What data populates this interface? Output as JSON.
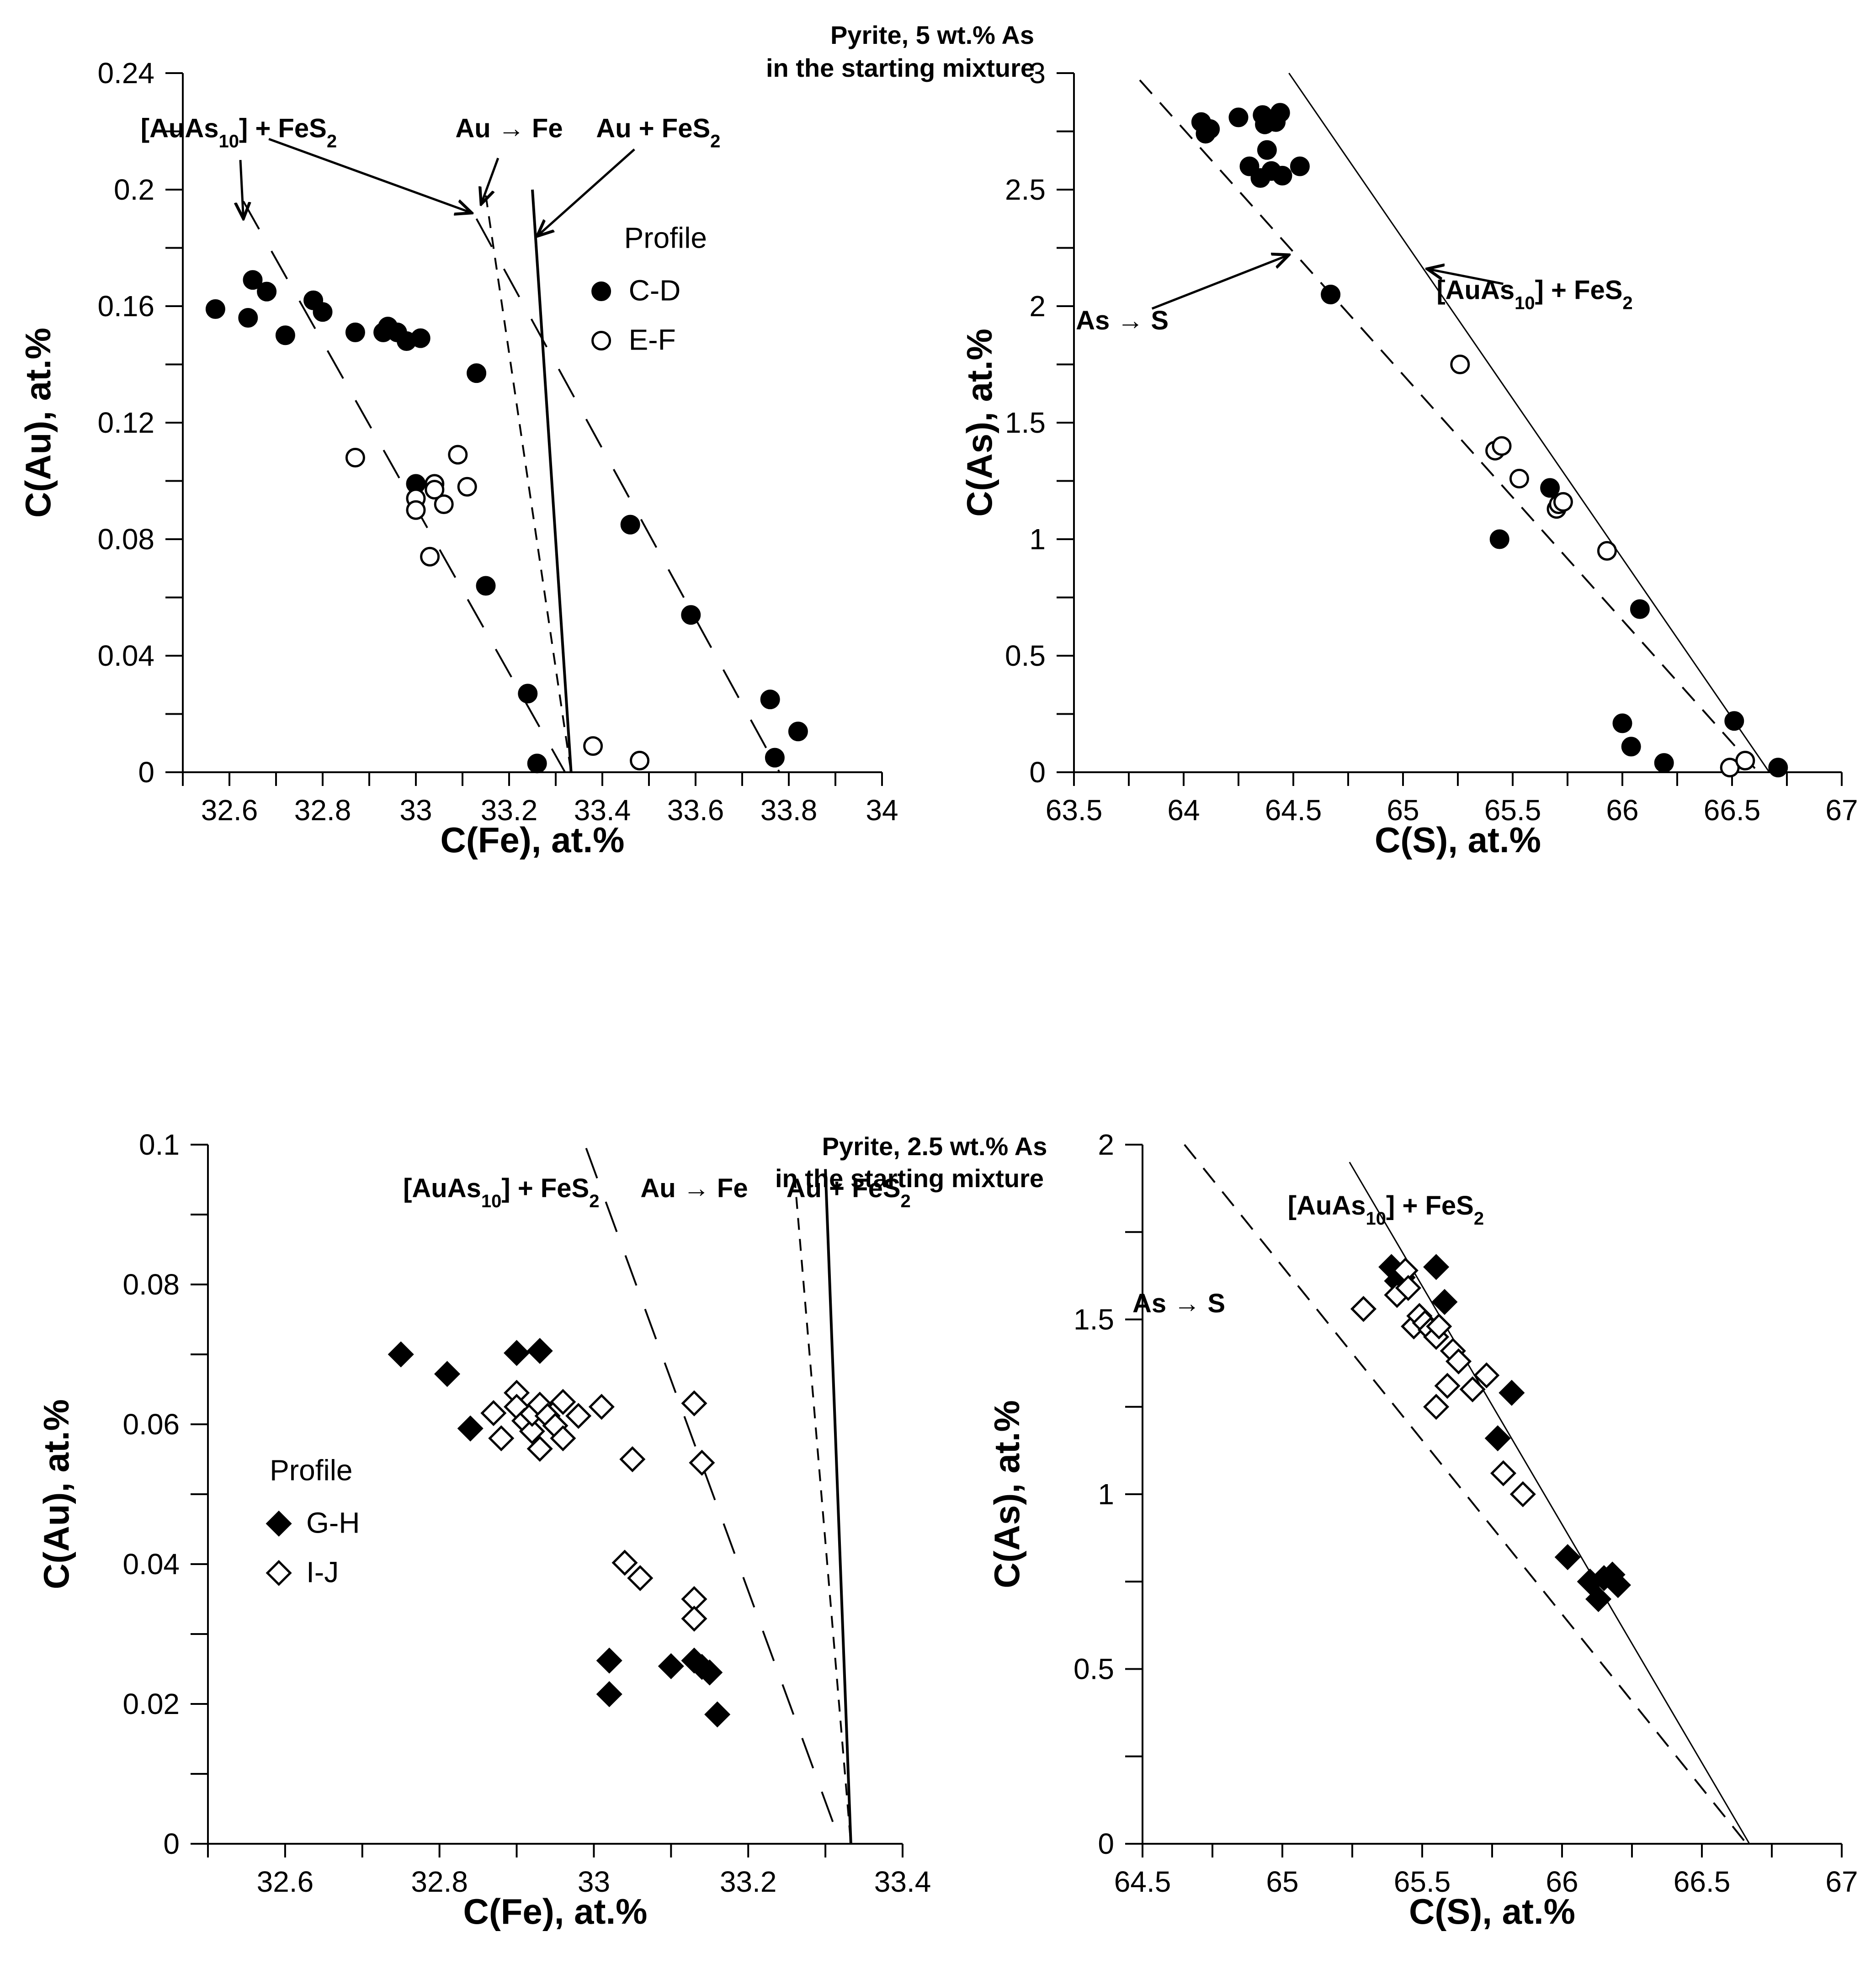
{
  "chart_data": [
    {
      "id": "p1",
      "type": "scatter",
      "title_lines": [
        "Pyrite, 5 wt.% As",
        "in the starting mixture"
      ],
      "xlabel": "C(Fe), at.%",
      "ylabel": "C(Au), at.%",
      "xlim": [
        32.5,
        34.0
      ],
      "ylim": [
        0,
        0.24
      ],
      "xticks": [
        32.6,
        32.8,
        33,
        33.2,
        33.4,
        33.6,
        33.8,
        34
      ],
      "xtick_labels": [
        "32.6",
        "32.8",
        "33",
        "33.2",
        "33.4",
        "33.6",
        "33.8",
        "34"
      ],
      "yticks": [
        0,
        0.04,
        0.08,
        0.12,
        0.16,
        0.2,
        0.24
      ],
      "ytick_labels": [
        "0",
        "0.04",
        "0.08",
        "0.12",
        "0.16",
        "0.2",
        "0.24"
      ],
      "legend": {
        "title": "Profile",
        "position": "top-right"
      },
      "series": [
        {
          "name": "C-D",
          "marker": "circle-filled",
          "x": [
            32.57,
            32.64,
            32.65,
            32.68,
            32.72,
            32.78,
            32.8,
            32.87,
            32.93,
            32.94,
            32.96,
            32.98,
            33.01,
            33.0,
            33.13,
            33.15,
            33.24,
            33.26,
            33.46,
            33.59,
            33.76,
            33.77,
            33.82
          ],
          "y": [
            0.159,
            0.156,
            0.169,
            0.165,
            0.15,
            0.162,
            0.158,
            0.151,
            0.151,
            0.153,
            0.151,
            0.148,
            0.149,
            0.099,
            0.137,
            0.064,
            0.027,
            0.003,
            0.085,
            0.054,
            0.025,
            0.005,
            0.014
          ]
        },
        {
          "name": "E-F",
          "marker": "circle-open",
          "x": [
            32.87,
            33.0,
            33.0,
            33.03,
            33.04,
            33.04,
            33.06,
            33.09,
            33.11,
            33.38,
            33.48
          ],
          "y": [
            0.108,
            0.094,
            0.09,
            0.074,
            0.099,
            0.097,
            0.092,
            0.109,
            0.098,
            0.009,
            0.004
          ]
        }
      ],
      "lines": [
        {
          "name": "[AuAs10] + FeS2",
          "style": "long-dash",
          "x": [
            32.63,
            33.32
          ],
          "y": [
            0.196,
            0.0
          ]
        },
        {
          "name": "[AuAs10] + FeS2",
          "style": "long-dash",
          "x": [
            33.13,
            33.78
          ],
          "y": [
            0.19,
            0.0
          ]
        },
        {
          "name": "Au → Fe",
          "style": "short-dash",
          "x": [
            33.15,
            33.333
          ],
          "y": [
            0.198,
            0.0
          ]
        },
        {
          "name": "Au + FeS2",
          "style": "solid",
          "x": [
            33.25,
            33.333
          ],
          "y": [
            0.2,
            0.0
          ]
        }
      ],
      "annotations": [
        {
          "text": "[AuAs10] + FeS2",
          "label_at": [
            32.62,
            0.218
          ],
          "arrows_to": [
            [
              32.63,
              0.19
            ],
            [
              33.12,
              0.192
            ]
          ]
        },
        {
          "text": "Au → Fe",
          "label_at": [
            33.2,
            0.218
          ],
          "arrows_to": [
            [
              33.14,
              0.195
            ]
          ]
        },
        {
          "text": "Au + FeS2",
          "label_at": [
            33.52,
            0.218
          ],
          "arrows_to": [
            [
              33.26,
              0.184
            ]
          ]
        }
      ]
    },
    {
      "id": "p2",
      "type": "scatter",
      "xlabel": "C(S), at.%",
      "ylabel": "C(As), at.%",
      "xlim": [
        63.5,
        67.0
      ],
      "ylim": [
        0,
        3
      ],
      "xticks": [
        63.5,
        64,
        64.5,
        65,
        65.5,
        66,
        66.5,
        67
      ],
      "xtick_labels": [
        "63.5",
        "64",
        "64.5",
        "65",
        "65.5",
        "66",
        "66.5",
        "67"
      ],
      "yticks": [
        0,
        0.5,
        1,
        1.5,
        2,
        2.5,
        3
      ],
      "ytick_labels": [
        "0",
        "0.5",
        "1",
        "1.5",
        "2",
        "2.5",
        "3"
      ],
      "series": [
        {
          "name": "C-D",
          "marker": "circle-filled",
          "x": [
            64.08,
            64.1,
            64.12,
            64.25,
            64.3,
            64.35,
            64.36,
            64.37,
            64.38,
            64.4,
            64.42,
            64.44,
            64.45,
            64.53,
            64.67,
            65.44,
            65.67,
            66.08,
            66.0,
            66.04,
            66.19,
            66.51,
            66.71
          ],
          "y": [
            2.79,
            2.74,
            2.76,
            2.81,
            2.6,
            2.55,
            2.82,
            2.78,
            2.67,
            2.58,
            2.79,
            2.83,
            2.56,
            2.6,
            2.05,
            1.0,
            1.22,
            0.7,
            0.21,
            0.11,
            0.04,
            0.22,
            0.02
          ]
        },
        {
          "name": "E-F",
          "marker": "circle-open",
          "x": [
            65.26,
            65.42,
            65.45,
            65.53,
            65.7,
            65.71,
            65.73,
            65.93,
            66.49,
            66.56
          ],
          "y": [
            1.75,
            1.38,
            1.4,
            1.26,
            1.13,
            1.15,
            1.16,
            0.95,
            0.02,
            0.05
          ]
        }
      ],
      "lines": [
        {
          "name": "As → S",
          "style": "dash",
          "x": [
            63.8,
            66.62
          ],
          "y": [
            2.97,
            0.0
          ]
        },
        {
          "name": "[AuAs10] + FeS2",
          "style": "solid",
          "x": [
            64.48,
            66.67
          ],
          "y": [
            3.0,
            0.0
          ]
        }
      ],
      "annotations": [
        {
          "text": "As → S",
          "label_at": [
            63.72,
            1.9
          ],
          "arrows_to": [
            [
              64.48,
              2.22
            ]
          ]
        },
        {
          "text": "[AuAs10] + FeS2",
          "label_at": [
            65.6,
            2.03
          ],
          "arrows_to": [
            [
              65.11,
              2.16
            ]
          ]
        }
      ]
    },
    {
      "id": "p3",
      "type": "scatter",
      "title_lines": [
        "Pyrite, 2.5 wt.% As",
        "in the starting mixture"
      ],
      "xlabel": "C(Fe), at.%",
      "ylabel": "C(Au), at.%",
      "xlim": [
        32.5,
        33.4
      ],
      "ylim": [
        0,
        0.1
      ],
      "xticks": [
        32.6,
        32.8,
        33,
        33.2,
        33.4
      ],
      "xtick_labels": [
        "32.6",
        "32.8",
        "33",
        "33.2",
        "33.4"
      ],
      "yticks": [
        0,
        0.02,
        0.04,
        0.06,
        0.08,
        0.1
      ],
      "ytick_labels": [
        "0",
        "0.02",
        "0.04",
        "0.06",
        "0.08",
        "0.1"
      ],
      "legend": {
        "title": "Profile",
        "position": "middle-left"
      },
      "series": [
        {
          "name": "G-H",
          "marker": "diamond-filled",
          "x": [
            32.75,
            32.81,
            32.84,
            32.9,
            32.93,
            33.02,
            33.02,
            33.1,
            33.13,
            33.14,
            33.15,
            33.16
          ],
          "y": [
            0.07,
            0.0672,
            0.0594,
            0.0702,
            0.0705,
            0.0262,
            0.0214,
            0.0254,
            0.0262,
            0.0253,
            0.0245,
            0.0185
          ]
        },
        {
          "name": "I-J",
          "marker": "diamond-open",
          "x": [
            32.87,
            32.88,
            32.9,
            32.9,
            32.91,
            32.92,
            32.92,
            32.93,
            32.93,
            32.94,
            32.95,
            32.96,
            32.96,
            32.98,
            33.01,
            33.04,
            33.05,
            33.06,
            33.13,
            33.13,
            33.13,
            33.14
          ],
          "y": [
            0.0616,
            0.058,
            0.0645,
            0.0625,
            0.0605,
            0.059,
            0.0615,
            0.0565,
            0.0628,
            0.0612,
            0.0598,
            0.0632,
            0.058,
            0.0612,
            0.0625,
            0.0402,
            0.055,
            0.038,
            0.063,
            0.035,
            0.0322,
            0.0545
          ]
        }
      ],
      "lines": [
        {
          "name": "[AuAs10] + FeS2",
          "style": "long-dash",
          "x": [
            32.99,
            33.32
          ],
          "y": [
            0.0995,
            0.0
          ]
        },
        {
          "name": "Au → Fe",
          "style": "short-dash",
          "x": [
            33.26,
            33.333
          ],
          "y": [
            0.0955,
            0.0
          ]
        },
        {
          "name": "Au + FeS2",
          "style": "solid",
          "x": [
            33.3,
            33.333
          ],
          "y": [
            0.0965,
            0.0
          ]
        }
      ],
      "annotations": [
        {
          "text": "[AuAs10] + FeS2",
          "label_at": [
            32.88,
            0.0925
          ]
        },
        {
          "text": "Au → Fe",
          "label_at": [
            33.13,
            0.0925
          ]
        },
        {
          "text": "Au + FeS2",
          "label_at": [
            33.33,
            0.0925
          ]
        }
      ]
    },
    {
      "id": "p4",
      "type": "scatter",
      "xlabel": "C(S), at.%",
      "ylabel": "C(As), at.%",
      "xlim": [
        64.5,
        67.0
      ],
      "ylim": [
        0,
        2
      ],
      "xticks": [
        64.5,
        65,
        65.5,
        66,
        66.5,
        67
      ],
      "xtick_labels": [
        "64.5",
        "65",
        "65.5",
        "66",
        "66.5",
        "67"
      ],
      "yticks": [
        0,
        0.5,
        1,
        1.5,
        2
      ],
      "ytick_labels": [
        "0",
        "0.5",
        "1",
        "1.5",
        "2"
      ],
      "series": [
        {
          "name": "G-H",
          "marker": "diamond-filled",
          "x": [
            65.39,
            65.41,
            65.43,
            65.55,
            65.58,
            65.77,
            65.82,
            66.02,
            66.1,
            66.13,
            66.15,
            66.18,
            66.2
          ],
          "y": [
            1.65,
            1.61,
            1.62,
            1.65,
            1.55,
            1.16,
            1.29,
            0.82,
            0.75,
            0.7,
            0.76,
            0.77,
            0.74
          ]
        },
        {
          "name": "I-J",
          "marker": "diamond-open",
          "x": [
            65.29,
            65.41,
            65.44,
            65.45,
            65.47,
            65.49,
            65.51,
            65.53,
            65.55,
            65.56,
            65.59,
            65.61,
            65.63,
            65.68,
            65.73,
            65.55,
            65.79,
            65.86
          ],
          "y": [
            1.53,
            1.57,
            1.64,
            1.59,
            1.48,
            1.51,
            1.49,
            1.47,
            1.45,
            1.48,
            1.31,
            1.41,
            1.38,
            1.3,
            1.34,
            1.25,
            1.06,
            1.0
          ]
        }
      ],
      "lines": [
        {
          "name": "As → S",
          "style": "dash",
          "x": [
            64.65,
            66.66
          ],
          "y": [
            2.0,
            0.0
          ]
        },
        {
          "name": "[AuAs10] + FeS2",
          "style": "solid",
          "x": [
            65.24,
            66.67
          ],
          "y": [
            1.95,
            0.0
          ]
        }
      ],
      "annotations": [
        {
          "text": "As → S",
          "label_at": [
            64.63,
            1.52
          ]
        },
        {
          "text": "[AuAs10] + FeS2",
          "label_at": [
            65.37,
            1.8
          ]
        }
      ]
    }
  ]
}
